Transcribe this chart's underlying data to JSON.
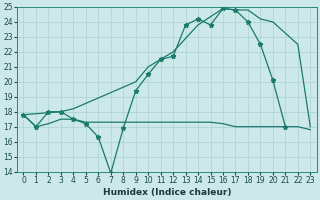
{
  "xlabel": "Humidex (Indice chaleur)",
  "bg_color": "#cce8e8",
  "line_color": "#1a7a6e",
  "grid_color": "#b0d4d4",
  "ylim": [
    14,
    25
  ],
  "xlim": [
    -0.5,
    23.5
  ],
  "yticks": [
    14,
    15,
    16,
    17,
    18,
    19,
    20,
    21,
    22,
    23,
    24,
    25
  ],
  "xticks": [
    0,
    1,
    2,
    3,
    4,
    5,
    6,
    7,
    8,
    9,
    10,
    11,
    12,
    13,
    14,
    15,
    16,
    17,
    18,
    19,
    20,
    21,
    22,
    23
  ],
  "line1_x": [
    0,
    1,
    2,
    3,
    4,
    5,
    6,
    7,
    8,
    9,
    10,
    11,
    12,
    13,
    14,
    15,
    16,
    17,
    18,
    19,
    20,
    21
  ],
  "line1_y": [
    17.8,
    17.0,
    18.0,
    18.0,
    17.5,
    17.2,
    16.3,
    13.9,
    16.9,
    19.4,
    20.5,
    21.5,
    21.7,
    23.8,
    24.2,
    23.8,
    24.9,
    24.8,
    24.0,
    22.5,
    20.1,
    17.0
  ],
  "line2_x": [
    0,
    1,
    2,
    3,
    4,
    5,
    6,
    7,
    8,
    9,
    10,
    11,
    12,
    13,
    14,
    15,
    16,
    17,
    18,
    19,
    20,
    21,
    22,
    23
  ],
  "line2_y": [
    17.8,
    17.0,
    17.2,
    17.5,
    17.5,
    17.3,
    17.3,
    17.3,
    17.3,
    17.3,
    17.3,
    17.3,
    17.3,
    17.3,
    17.3,
    17.3,
    17.2,
    17.0,
    17.0,
    17.0,
    17.0,
    17.0,
    17.0,
    16.8
  ],
  "line3_x": [
    0,
    3,
    4,
    9,
    10,
    11,
    12,
    14,
    16,
    17,
    18,
    19,
    20,
    22,
    23
  ],
  "line3_y": [
    17.8,
    18.0,
    18.2,
    20.0,
    21.0,
    21.5,
    22.0,
    23.8,
    24.9,
    24.8,
    24.8,
    24.2,
    24.0,
    22.5,
    17.0
  ]
}
